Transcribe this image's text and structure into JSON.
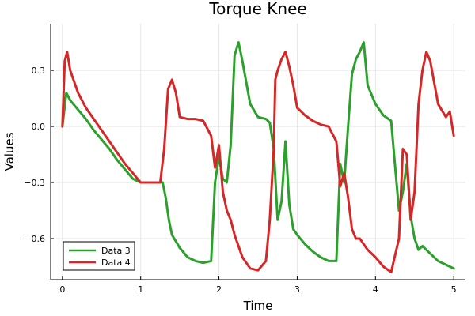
{
  "chart_data": {
    "type": "line",
    "title": "Torque Knee",
    "xlabel": "Time",
    "ylabel": "Values",
    "xlim": [
      -0.15,
      5.15
    ],
    "ylim": [
      -0.82,
      0.55
    ],
    "xticks": [
      0,
      1,
      2,
      3,
      4,
      5
    ],
    "xtick_labels": [
      "0",
      "1",
      "2",
      "3",
      "4",
      "5"
    ],
    "yticks": [
      -0.6,
      -0.3,
      0.0,
      0.3
    ],
    "ytick_labels": [
      "−0.6",
      "−0.3",
      "0.0",
      "0.3"
    ],
    "grid": true,
    "legend_position": "bottom-left",
    "series": [
      {
        "name": "Data 3",
        "color": "#2ca02c",
        "x": [
          0,
          0.05,
          0.1,
          0.2,
          0.3,
          0.4,
          0.5,
          0.6,
          0.7,
          0.8,
          0.9,
          1.0,
          1.1,
          1.2,
          1.28,
          1.32,
          1.36,
          1.4,
          1.5,
          1.6,
          1.7,
          1.8,
          1.9,
          1.95,
          2.0,
          2.05,
          2.1,
          2.15,
          2.2,
          2.25,
          2.3,
          2.4,
          2.5,
          2.6,
          2.65,
          2.7,
          2.75,
          2.8,
          2.85,
          2.9,
          2.95,
          3.0,
          3.1,
          3.2,
          3.3,
          3.4,
          3.5,
          3.55,
          3.6,
          3.65,
          3.7,
          3.75,
          3.8,
          3.85,
          3.9,
          4.0,
          4.1,
          4.2,
          4.3,
          4.35,
          4.4,
          4.45,
          4.5,
          4.55,
          4.6,
          4.7,
          4.8,
          4.9,
          5.0
        ],
        "y": [
          0.0,
          0.18,
          0.14,
          0.09,
          0.04,
          -0.02,
          -0.07,
          -0.12,
          -0.18,
          -0.23,
          -0.28,
          -0.3,
          -0.3,
          -0.3,
          -0.3,
          -0.38,
          -0.5,
          -0.58,
          -0.65,
          -0.7,
          -0.72,
          -0.73,
          -0.72,
          -0.3,
          -0.16,
          -0.28,
          -0.3,
          -0.1,
          0.38,
          0.45,
          0.35,
          0.12,
          0.05,
          0.04,
          0.02,
          -0.12,
          -0.5,
          -0.4,
          -0.08,
          -0.42,
          -0.55,
          -0.58,
          -0.63,
          -0.67,
          -0.7,
          -0.72,
          -0.72,
          -0.2,
          -0.3,
          0.0,
          0.28,
          0.36,
          0.4,
          0.45,
          0.22,
          0.12,
          0.06,
          0.03,
          -0.45,
          -0.35,
          -0.2,
          -0.48,
          -0.6,
          -0.66,
          -0.64,
          -0.68,
          -0.72,
          -0.74,
          -0.76
        ]
      },
      {
        "name": "Data 4",
        "color": "#d62728",
        "x": [
          0,
          0.03,
          0.06,
          0.1,
          0.2,
          0.3,
          0.4,
          0.5,
          0.6,
          0.7,
          0.8,
          0.9,
          1.0,
          1.1,
          1.2,
          1.25,
          1.3,
          1.35,
          1.4,
          1.45,
          1.5,
          1.6,
          1.7,
          1.8,
          1.9,
          1.95,
          2.0,
          2.05,
          2.1,
          2.15,
          2.2,
          2.3,
          2.4,
          2.5,
          2.6,
          2.65,
          2.7,
          2.72,
          2.75,
          2.8,
          2.85,
          2.9,
          2.95,
          3.0,
          3.1,
          3.2,
          3.3,
          3.4,
          3.5,
          3.55,
          3.6,
          3.65,
          3.7,
          3.75,
          3.8,
          3.9,
          4.0,
          4.1,
          4.2,
          4.3,
          4.35,
          4.4,
          4.45,
          4.5,
          4.55,
          4.6,
          4.65,
          4.7,
          4.8,
          4.9,
          4.95,
          5.0
        ],
        "y": [
          0.0,
          0.35,
          0.4,
          0.3,
          0.18,
          0.1,
          0.04,
          -0.02,
          -0.08,
          -0.14,
          -0.2,
          -0.25,
          -0.3,
          -0.3,
          -0.3,
          -0.3,
          -0.12,
          0.2,
          0.25,
          0.18,
          0.05,
          0.04,
          0.04,
          0.03,
          -0.05,
          -0.22,
          -0.1,
          -0.35,
          -0.45,
          -0.5,
          -0.58,
          -0.7,
          -0.76,
          -0.77,
          -0.72,
          -0.5,
          -0.12,
          0.25,
          0.3,
          0.36,
          0.4,
          0.32,
          0.22,
          0.1,
          0.06,
          0.03,
          0.01,
          0.0,
          -0.08,
          -0.32,
          -0.25,
          -0.38,
          -0.55,
          -0.6,
          -0.6,
          -0.66,
          -0.7,
          -0.75,
          -0.78,
          -0.6,
          -0.12,
          -0.15,
          -0.5,
          -0.35,
          0.12,
          0.3,
          0.4,
          0.35,
          0.12,
          0.05,
          0.08,
          -0.05
        ]
      }
    ]
  }
}
